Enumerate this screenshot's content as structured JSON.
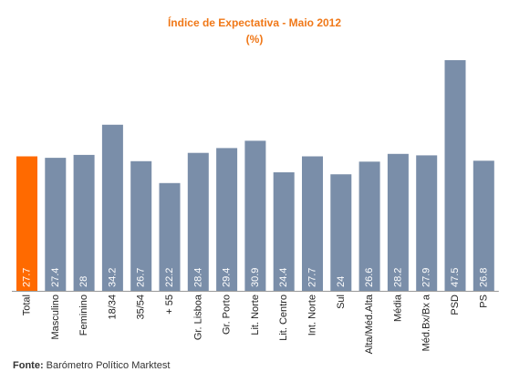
{
  "chart_data": {
    "type": "bar",
    "title": "Índice de Expectativa - Maio 2012",
    "subtitle": "(%)",
    "categories": [
      "Total",
      "Masculino",
      "Feminino",
      "18/34",
      "35/54",
      "+ 55",
      "Gr. Lisboa",
      "Gr. Porto",
      "Lit. Norte",
      "Lit. Centro",
      "Int. Norte",
      "Sul",
      "Alta/Méd.Alta",
      "Média",
      "Méd.Bx/Bx a",
      "PSD",
      "PS"
    ],
    "values": [
      27.7,
      27.4,
      28,
      34.2,
      26.7,
      22.2,
      28.4,
      29.4,
      30.9,
      24.4,
      27.7,
      24,
      26.6,
      28.2,
      27.9,
      47.5,
      26.8
    ],
    "value_labels": [
      "27.7",
      "27.4",
      "28",
      "34.2",
      "26.7",
      "22.2",
      "28.4",
      "29.4",
      "30.9",
      "24.4",
      "27.7",
      "24",
      "26.6",
      "28.2",
      "27.9",
      "47.5",
      "26.8"
    ],
    "highlight_index": 0,
    "ylim": [
      0,
      47.5
    ],
    "grid": false,
    "legend": "none",
    "colors": {
      "bar": "#7a8ea9",
      "highlight": "#ff6a00",
      "value_label": "#ffffff",
      "title": "#f07818",
      "axis": "#999999",
      "tick_label": "#222222"
    }
  },
  "footer": {
    "source_label": "Fonte:",
    "source_text": " Barómetro Político Marktest"
  }
}
